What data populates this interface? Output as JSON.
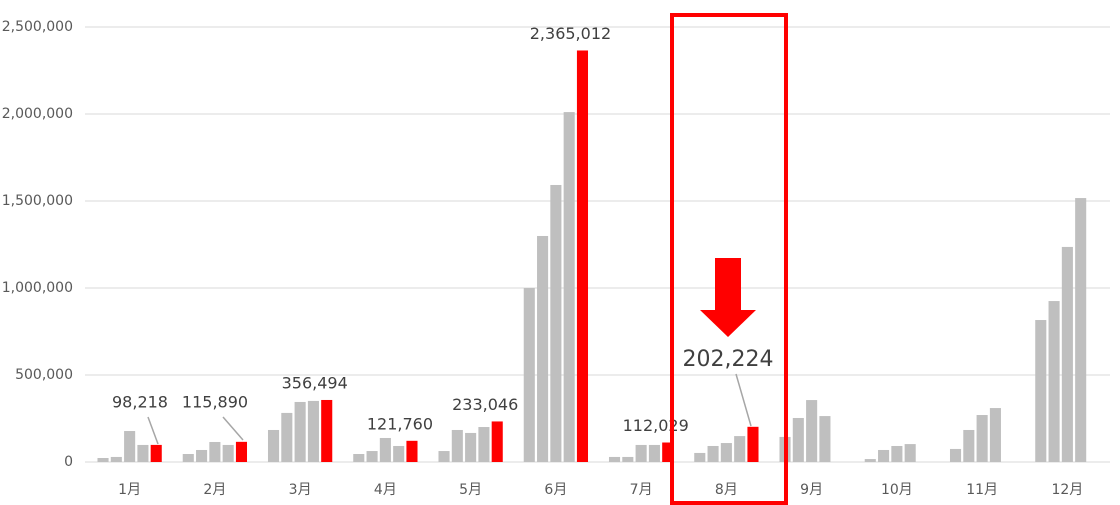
{
  "chart_data": {
    "type": "bar",
    "categories": [
      "1月",
      "2月",
      "3月",
      "4月",
      "5月",
      "6月",
      "7月",
      "8月",
      "9月",
      "10月",
      "11月",
      "12月"
    ],
    "series": [
      {
        "color": "#bfbfbf",
        "values": [
          23000,
          46000,
          184000,
          46000,
          63000,
          1000000,
          29000,
          52000,
          144000,
          17000,
          75000,
          816000
        ]
      },
      {
        "color": "#bfbfbf",
        "values": [
          29000,
          69000,
          282000,
          63000,
          184000,
          1299000,
          29000,
          92000,
          253000,
          69000,
          184000,
          925000
        ]
      },
      {
        "color": "#bfbfbf",
        "values": [
          178000,
          115000,
          345000,
          138000,
          167000,
          1592000,
          98000,
          109000,
          356000,
          92000,
          270000,
          1236000
        ]
      },
      {
        "color": "#bfbfbf",
        "values": [
          98000,
          98000,
          351000,
          92000,
          201000,
          2011000,
          98000,
          149000,
          264000,
          103000,
          310000,
          1517000
        ]
      },
      {
        "color": "#ff0000",
        "values": [
          98218,
          115890,
          356494,
          121760,
          233046,
          2365012,
          112029,
          202224,
          null,
          null,
          null,
          null
        ],
        "value_labels": [
          "98,218",
          "115,890",
          "356,494",
          "121,760",
          "233,046",
          "2,365,012",
          "112,029",
          "202,224",
          null,
          null,
          null,
          null
        ]
      }
    ],
    "ylim": [
      0,
      2500000
    ],
    "yticks": [
      0,
      {
        "value": 500000,
        "label": "500,000"
      },
      {
        "value": 1000000,
        "label": "1,000,000"
      },
      {
        "value": 1500000,
        "label": "1,500,000"
      },
      {
        "value": 2000000,
        "label": "2,000,000"
      },
      {
        "value": 2500000,
        "label": "2,500,000"
      }
    ],
    "grid": true
  }
}
